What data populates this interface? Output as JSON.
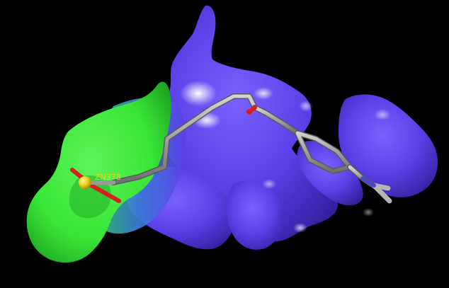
{
  "scene": {
    "background_color": "#000000",
    "surface_colors": {
      "pocket_purple": "#5a3fe6",
      "pocket_purple_dark": "#3a22b8",
      "pocket_highlight": "#f4f2ff",
      "pocket_green": "#39e636",
      "pocket_green_dark": "#1fae27",
      "pocket_blend_blue": "#3a7fd6"
    },
    "ligand_colors": {
      "carbon": "#8c8c8c",
      "carbon_highlight": "#d2d2d2",
      "oxygen": "#d81e1e",
      "nitrogen": "#4a4ac8",
      "zinc": "#f2d21c"
    }
  },
  "atom_label": {
    "text": "ZN378",
    "color": "#f2d21c"
  }
}
